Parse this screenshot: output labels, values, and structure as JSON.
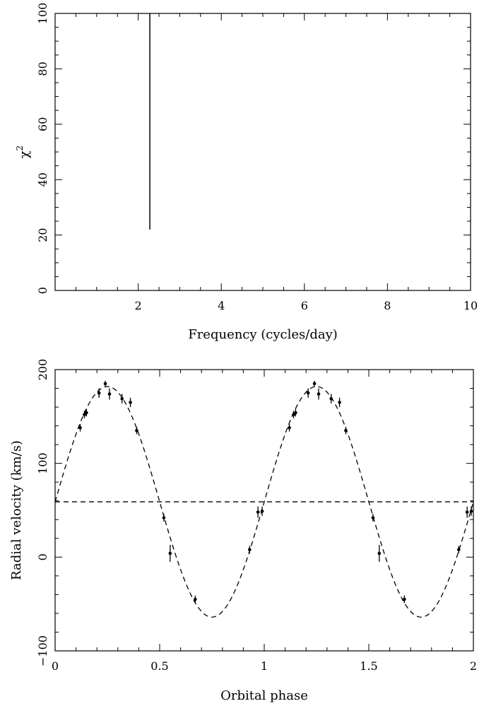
{
  "chart_data": [
    {
      "type": "line",
      "title": "",
      "xlabel": "Frequency (cycles/day)",
      "ylabel": "χ",
      "ylabel_superscript": "2",
      "xlim": [
        0,
        10
      ],
      "ylim": [
        0,
        100
      ],
      "xticks": [
        2,
        4,
        6,
        8,
        10
      ],
      "xtick_labels": [
        "2",
        "4",
        "6",
        "8",
        "10"
      ],
      "yticks": [
        0,
        20,
        40,
        60,
        80,
        100
      ],
      "ytick_labels": [
        "0",
        "20",
        "40",
        "60",
        "80",
        "100"
      ],
      "grid": false,
      "series": [
        {
          "x": [
            2.28,
            2.28
          ],
          "y": [
            22,
            100
          ]
        }
      ]
    },
    {
      "type": "scatter",
      "title": "",
      "xlabel": "Orbital phase",
      "ylabel": "Radial velocity (km/s)",
      "xlim": [
        0,
        2
      ],
      "ylim": [
        -100,
        200
      ],
      "xticks": [
        0,
        0.5,
        1,
        1.5,
        2
      ],
      "xtick_labels": [
        "0",
        "0.5",
        "1",
        "1.5",
        "2"
      ],
      "yticks": [
        -100,
        0,
        100,
        200
      ],
      "ytick_labels": [
        "−100",
        "0",
        "100",
        "200"
      ],
      "grid": false,
      "points": [
        {
          "x": 0.12,
          "y": 138,
          "err": 4
        },
        {
          "x": 0.14,
          "y": 152,
          "err": 4
        },
        {
          "x": 0.15,
          "y": 154,
          "err": 4
        },
        {
          "x": 0.21,
          "y": 175,
          "err": 5
        },
        {
          "x": 0.24,
          "y": 185,
          "err": 3
        },
        {
          "x": 0.26,
          "y": 174,
          "err": 6
        },
        {
          "x": 0.32,
          "y": 169,
          "err": 5
        },
        {
          "x": 0.36,
          "y": 165,
          "err": 5
        },
        {
          "x": 0.39,
          "y": 135,
          "err": 4
        },
        {
          "x": 0.52,
          "y": 42,
          "err": 4
        },
        {
          "x": 0.55,
          "y": 4,
          "err": 9
        },
        {
          "x": 0.67,
          "y": -45,
          "err": 4
        },
        {
          "x": 0.93,
          "y": 8,
          "err": 4
        },
        {
          "x": 0.97,
          "y": 48,
          "err": 6
        },
        {
          "x": 0.99,
          "y": 49,
          "err": 5
        }
      ],
      "fold_period": 1,
      "model": {
        "type": "sinusoid",
        "gamma": 59,
        "amplitude": 123,
        "max_phase": 0.25,
        "style": "dashed"
      },
      "reference_line": {
        "y": 59,
        "style": "dashed"
      }
    }
  ]
}
